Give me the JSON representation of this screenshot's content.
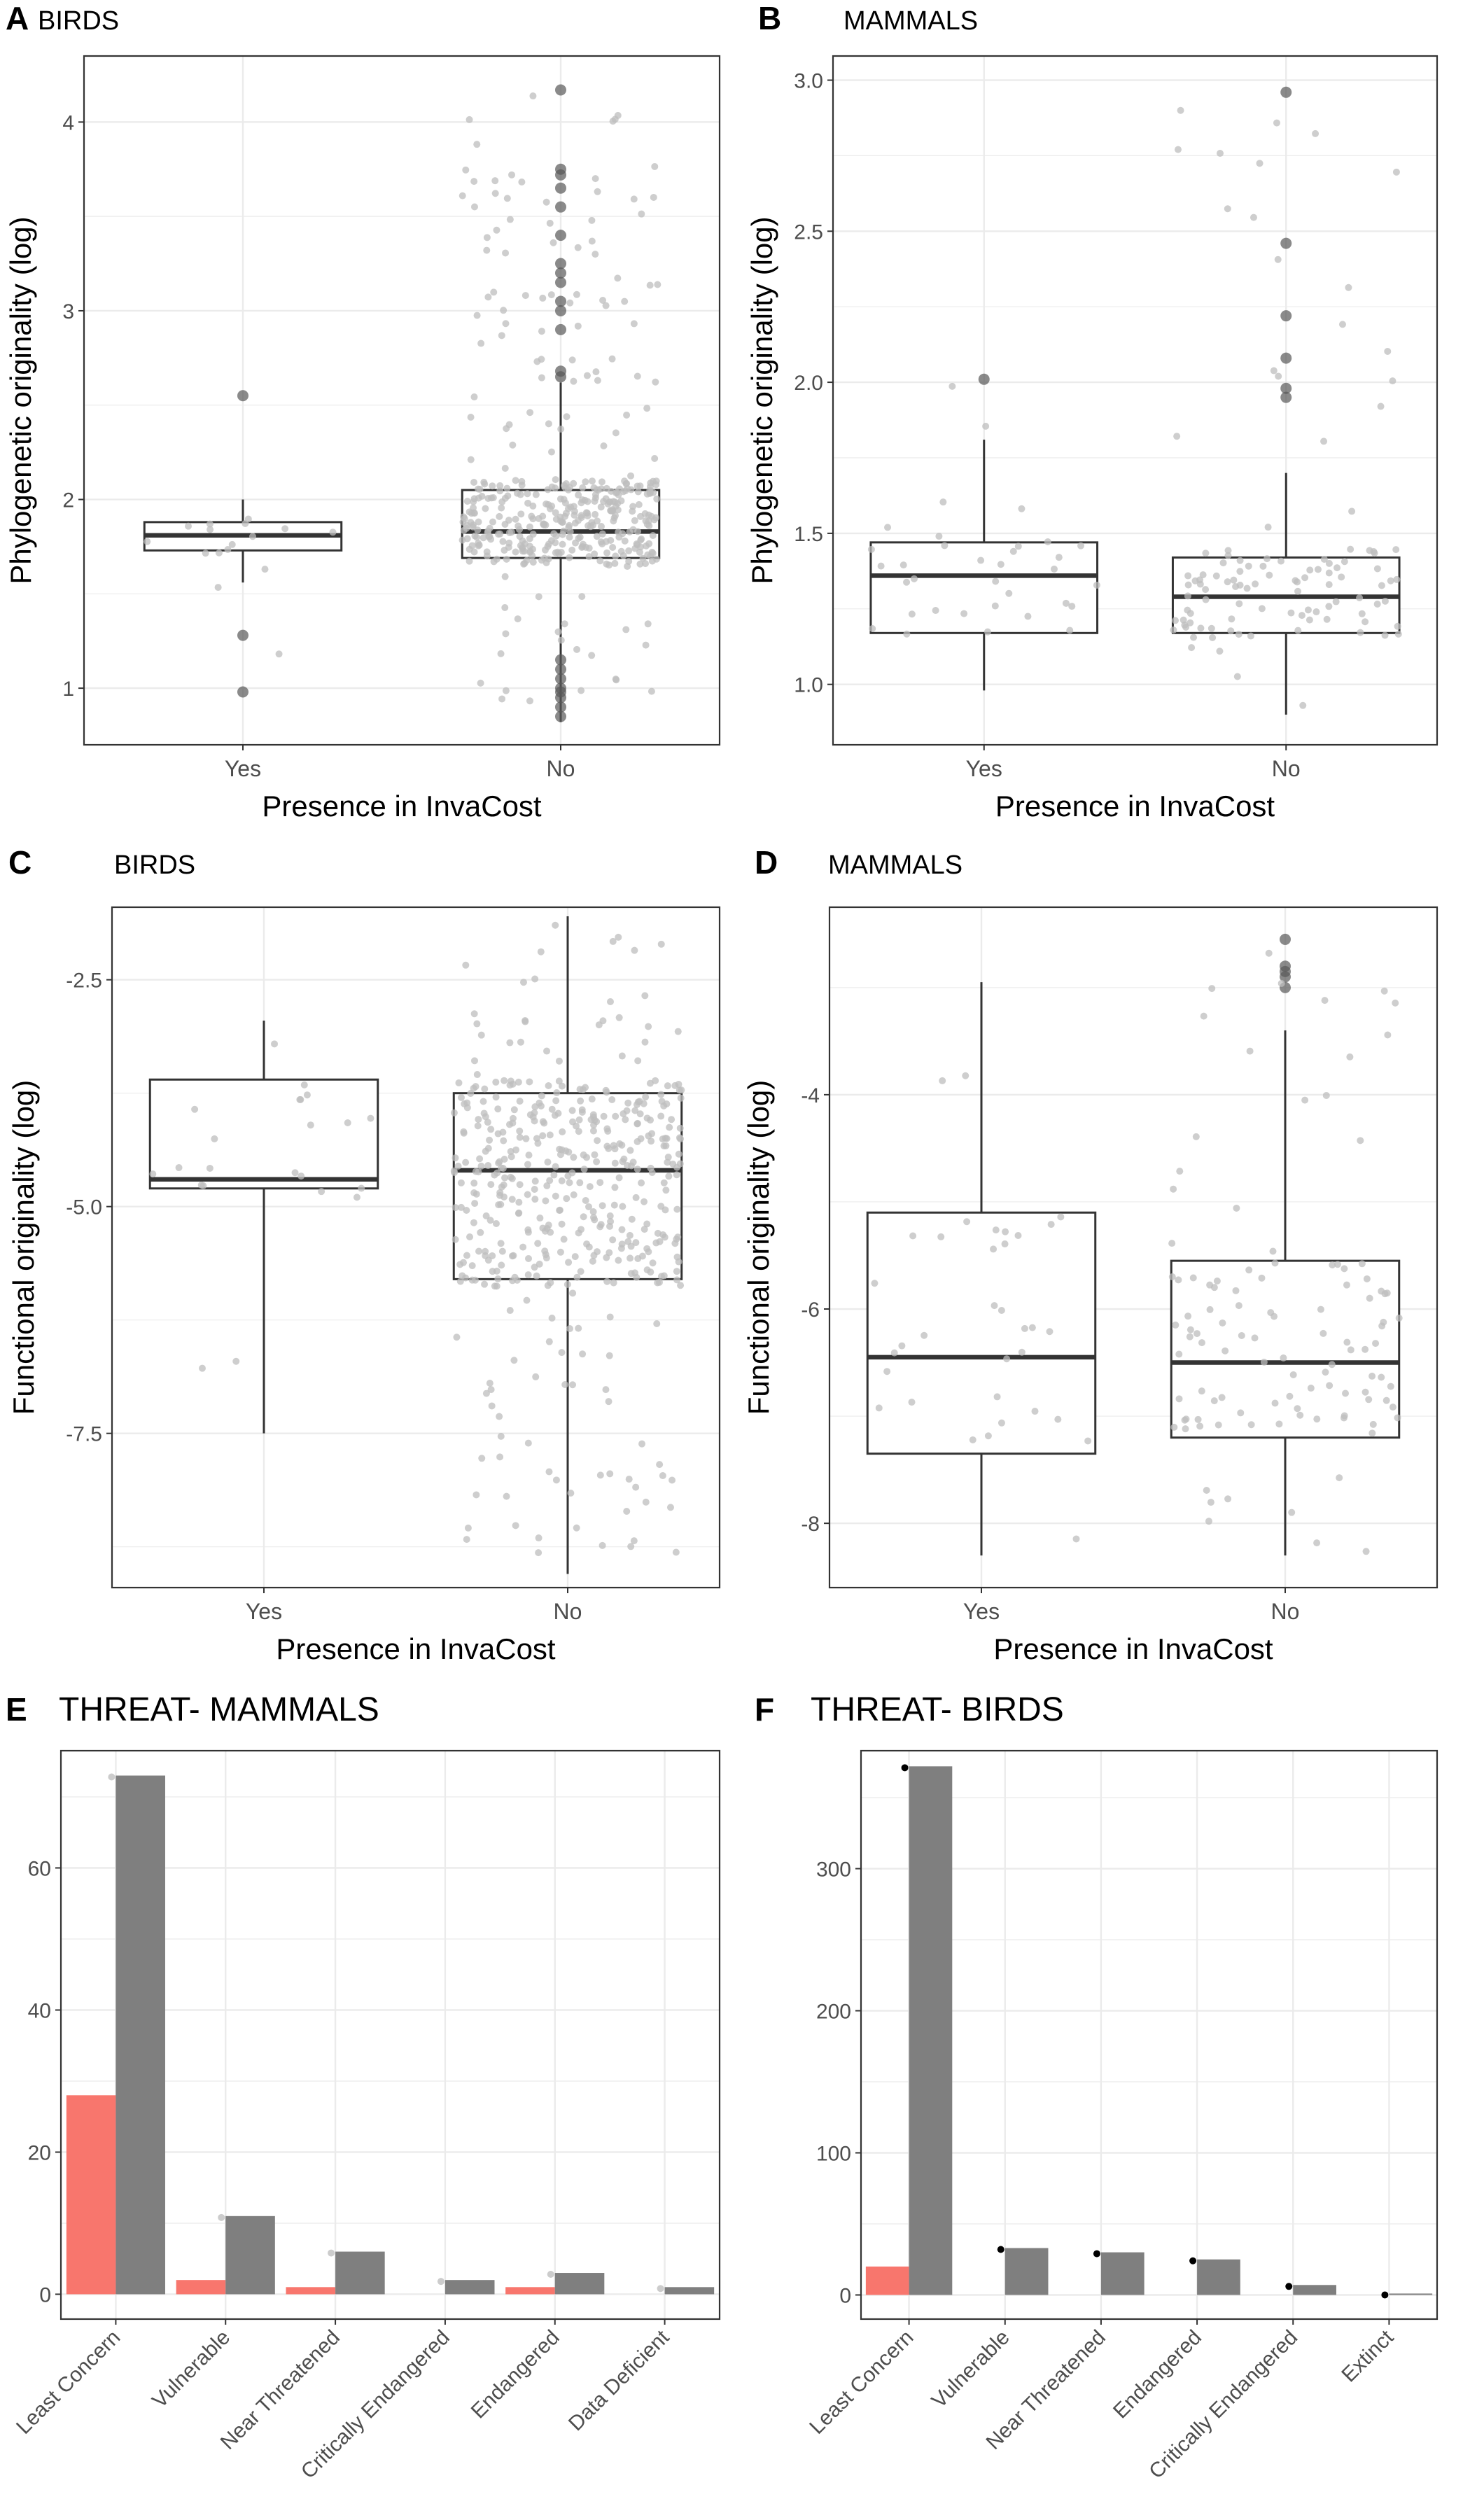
{
  "colors": {
    "yes_fill": "#F8766D",
    "no_fill": "#7F7F7F",
    "grid": "#EBEBEB",
    "box_line": "#333333",
    "jitter": "#BDBDBD",
    "outlier": "#595959"
  },
  "chart_data": [
    {
      "id": "A",
      "letter": "A",
      "title": "BIRDS",
      "type": "box",
      "xlabel": "Presence in InvaCost",
      "ylabel": "Phylogenetic originality (log)",
      "categories": [
        "Yes",
        "No"
      ],
      "ylim": [
        0.7,
        4.35
      ],
      "yticks": [
        1,
        2,
        3,
        4
      ],
      "ytick_labels": [
        "1",
        "2",
        "3",
        "4"
      ],
      "box_width": 0.62,
      "boxes": [
        {
          "q1": 1.73,
          "median": 1.81,
          "q3": 1.88,
          "lower": 1.56,
          "upper": 2.0,
          "outliers": [
            0.98,
            1.28,
            2.55
          ]
        },
        {
          "q1": 1.69,
          "median": 1.83,
          "q3": 2.05,
          "lower": 0.82,
          "upper": 2.62,
          "outliers": [
            0.85,
            0.9,
            0.95,
            0.98,
            1.0,
            1.05,
            1.1,
            1.15,
            2.65,
            2.68,
            2.9,
            3.0,
            3.05,
            3.15,
            3.2,
            3.25,
            3.4,
            3.55,
            3.65,
            3.72,
            3.75,
            4.17
          ]
        }
      ],
      "jitter": {
        "n": [
          16,
          420
        ],
        "range": [
          [
            0.95,
            2.55
          ],
          [
            0.9,
            4.15
          ]
        ],
        "core": [
          [
            1.7,
            1.9
          ],
          [
            1.65,
            2.1
          ]
        ]
      }
    },
    {
      "id": "B",
      "letter": "B",
      "title": "MAMMALS",
      "type": "box",
      "xlabel": "Presence in InvaCost",
      "ylabel": "Phylogenetic originality (log)",
      "categories": [
        "Yes",
        "No"
      ],
      "ylim": [
        0.8,
        3.08
      ],
      "yticks": [
        1.0,
        1.5,
        2.0,
        2.5,
        3.0
      ],
      "ytick_labels": [
        "1.0",
        "1.5",
        "2.0",
        "2.5",
        "3.0"
      ],
      "box_width": 0.75,
      "boxes": [
        {
          "q1": 1.17,
          "median": 1.36,
          "q3": 1.47,
          "lower": 0.98,
          "upper": 1.81,
          "outliers": [
            2.01
          ]
        },
        {
          "q1": 1.17,
          "median": 1.29,
          "q3": 1.42,
          "lower": 0.9,
          "upper": 1.7,
          "outliers": [
            1.95,
            1.98,
            2.08,
            2.22,
            2.46,
            2.96
          ]
        }
      ],
      "jitter": {
        "n": [
          34,
          110
        ],
        "range": [
          [
            0.97,
            2.01
          ],
          [
            0.9,
            2.96
          ]
        ],
        "core": [
          [
            1.15,
            1.5
          ],
          [
            1.15,
            1.45
          ]
        ]
      }
    },
    {
      "id": "C",
      "letter": "C",
      "title": "BIRDS",
      "type": "box",
      "xlabel": "Presence in InvaCost",
      "ylabel": "Functional originality (log)",
      "categories": [
        "Yes",
        "No"
      ],
      "ylim": [
        -9.2,
        -1.7
      ],
      "yticks": [
        -2.5,
        -5.0,
        -7.5
      ],
      "ytick_labels": [
        "-2.5",
        "-5.0",
        "-7.5"
      ],
      "box_width": 0.75,
      "boxes": [
        {
          "q1": -4.8,
          "median": -4.7,
          "q3": -3.6,
          "lower": -7.5,
          "upper": -2.95,
          "outliers": []
        },
        {
          "q1": -5.8,
          "median": -4.6,
          "q3": -3.75,
          "lower": -9.05,
          "upper": -1.8,
          "outliers": []
        }
      ],
      "jitter": {
        "n": [
          22,
          460
        ],
        "range": [
          [
            -7.4,
            -2.9
          ],
          [
            -9.0,
            -1.8
          ]
        ],
        "core": [
          [
            -4.9,
            -3.5
          ],
          [
            -5.9,
            -3.6
          ]
        ]
      }
    },
    {
      "id": "D",
      "letter": "D",
      "title": "MAMMALS",
      "type": "box",
      "xlabel": "Presence in InvaCost",
      "ylabel": "Functional originality (log)",
      "categories": [
        "Yes",
        "No"
      ],
      "ylim": [
        -8.6,
        -2.25
      ],
      "yticks": [
        -4,
        -6,
        -8
      ],
      "ytick_labels": [
        "-4",
        "-6",
        "-8"
      ],
      "box_width": 0.75,
      "boxes": [
        {
          "q1": -7.35,
          "median": -6.45,
          "q3": -5.1,
          "lower": -8.3,
          "upper": -2.95,
          "outliers": []
        },
        {
          "q1": -7.2,
          "median": -6.5,
          "q3": -5.55,
          "lower": -8.3,
          "upper": -3.4,
          "outliers": [
            -2.55,
            -2.8,
            -2.85,
            -2.9,
            -3.0
          ]
        }
      ],
      "jitter": {
        "n": [
          34,
          110
        ],
        "range": [
          [
            -8.3,
            -2.95
          ],
          [
            -8.3,
            -2.55
          ]
        ],
        "core": [
          [
            -7.3,
            -5.0
          ],
          [
            -7.2,
            -5.5
          ]
        ]
      }
    },
    {
      "id": "E",
      "letter": "E",
      "title": "THREAT- MAMMALS",
      "type": "bar",
      "categories": [
        "Least Concern",
        "Vulnerable",
        "Near Threatened",
        "Critically Endangered",
        "Endangered",
        "Data Deficient"
      ],
      "ylim": [
        -3.5,
        76.5
      ],
      "yticks": [
        0,
        20,
        40,
        60
      ],
      "ytick_labels": [
        "0",
        "20",
        "40",
        "60"
      ],
      "series": [
        {
          "key": "yes",
          "values": [
            28,
            2,
            1,
            0,
            1,
            0
          ]
        },
        {
          "key": "no",
          "values": [
            73,
            11,
            6,
            2,
            3,
            1
          ]
        }
      ],
      "point_markers": [
        73,
        11,
        6,
        2,
        3,
        1
      ]
    },
    {
      "id": "F",
      "letter": "F",
      "title": "THREAT- BIRDS",
      "type": "bar",
      "categories": [
        "Least Concern",
        "Vulnerable",
        "Near Threatened",
        "Endangered",
        "Critically Endangered",
        "Extinct"
      ],
      "ylim": [
        -17,
        383
      ],
      "yticks": [
        0,
        100,
        200,
        300
      ],
      "ytick_labels": [
        "0",
        "100",
        "200",
        "300"
      ],
      "series": [
        {
          "key": "yes",
          "values": [
            20,
            0,
            0,
            0,
            0,
            0
          ]
        },
        {
          "key": "no",
          "values": [
            372,
            33,
            30,
            25,
            7,
            1
          ]
        }
      ],
      "point_markers": [
        372,
        33,
        30,
        25,
        7,
        1
      ]
    }
  ]
}
